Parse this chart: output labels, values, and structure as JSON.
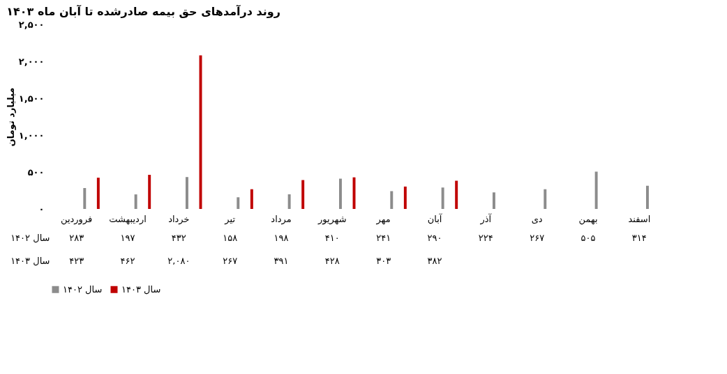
{
  "chart_data": {
    "type": "bar",
    "title": "روند درآمدهای حق بیمه صادرشده تا آبان ماه ۱۴۰۳",
    "ylabel": "میلیارد تومان",
    "categories": [
      "فروردین",
      "اردیبهشت",
      "خرداد",
      "تیر",
      "مرداد",
      "شهریور",
      "مهر",
      "آبان",
      "آذر",
      "دی",
      "بهمن",
      "اسفند"
    ],
    "series": [
      {
        "name": "سال ۱۴۰۲",
        "color": "#8c8c8c",
        "values": [
          283,
          197,
          432,
          158,
          198,
          410,
          241,
          290,
          224,
          267,
          505,
          314
        ],
        "value_labels": [
          "۲۸۳",
          "۱۹۷",
          "۴۳۲",
          "۱۵۸",
          "۱۹۸",
          "۴۱۰",
          "۲۴۱",
          "۲۹۰",
          "۲۲۴",
          "۲۶۷",
          "۵۰۵",
          "۳۱۴"
        ]
      },
      {
        "name": "سال ۱۴۰۳",
        "color": "#c00000",
        "values": [
          423,
          462,
          2080,
          267,
          391,
          428,
          303,
          382,
          null,
          null,
          null,
          null
        ],
        "value_labels": [
          "۴۲۳",
          "۴۶۲",
          "۲,۰۸۰",
          "۲۶۷",
          "۳۹۱",
          "۴۲۸",
          "۳۰۳",
          "۳۸۲",
          null,
          null,
          null,
          null
        ]
      }
    ],
    "ylim": [
      0,
      2500
    ],
    "yticks": [
      {
        "value": 0,
        "label": "۰"
      },
      {
        "value": 500,
        "label": "۵۰۰"
      },
      {
        "value": 1000,
        "label": "۱,۰۰۰"
      },
      {
        "value": 1500,
        "label": "۱,۵۰۰"
      },
      {
        "value": 2000,
        "label": "۲,۰۰۰"
      },
      {
        "value": 2500,
        "label": "۲,۵۰۰"
      }
    ],
    "grid": false,
    "legend": "bottom"
  }
}
